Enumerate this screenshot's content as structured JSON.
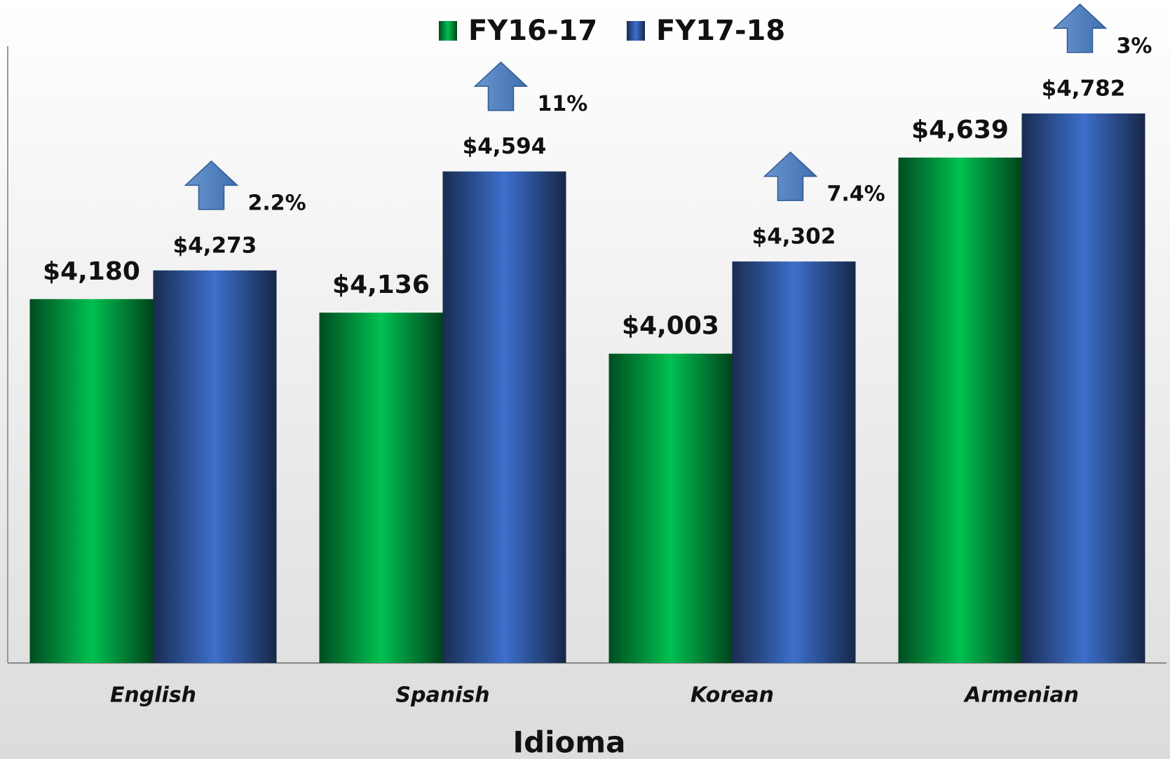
{
  "chart_data": {
    "type": "bar",
    "x_label": "Idioma",
    "categories": [
      "English",
      "Spanish",
      "Korean",
      "Armenian"
    ],
    "series": [
      {
        "name": "FY16-17",
        "color": "#00c050",
        "values": [
          4180,
          4136,
          4003,
          4639
        ],
        "value_labels": [
          "$4,180",
          "$4,136",
          "$4,003",
          "$4,639"
        ]
      },
      {
        "name": "FY17-18",
        "color": "#3d6fcc",
        "values": [
          4273,
          4594,
          4302,
          4782
        ],
        "value_labels": [
          "$4,273",
          "$4,594",
          "$4,302",
          "$4,782"
        ]
      }
    ],
    "annotations": [
      "2.2%",
      "11%",
      "7.4%",
      "3%"
    ],
    "ylim": [
      3000,
      5000
    ],
    "legend": "top"
  }
}
